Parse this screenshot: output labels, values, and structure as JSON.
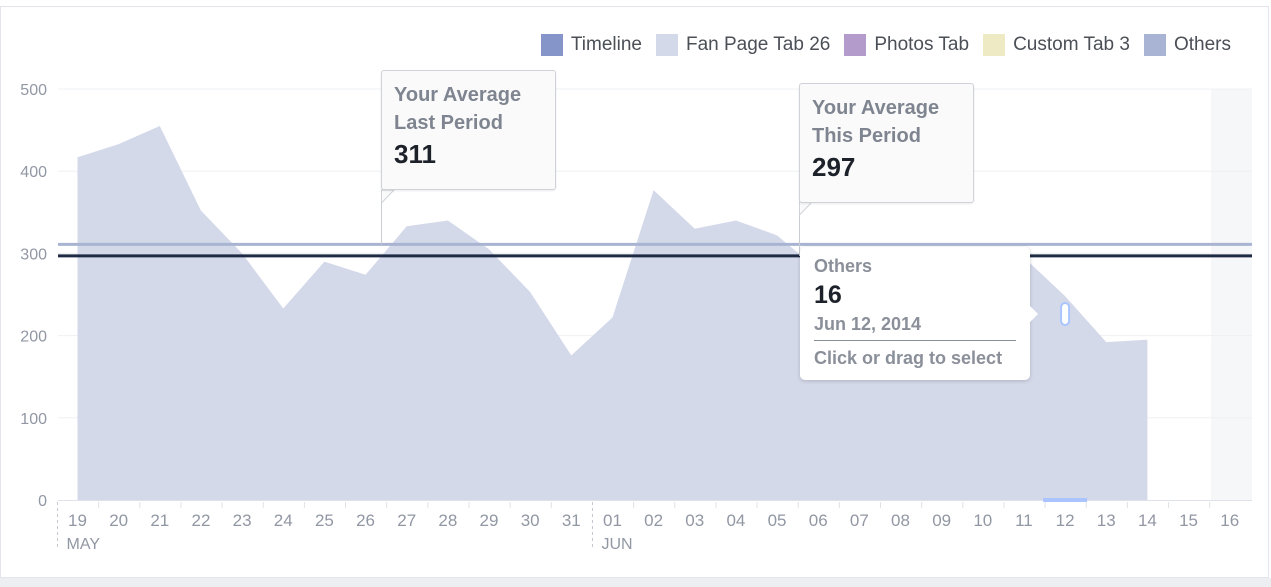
{
  "colors": {
    "area": "#d4d9ea",
    "line_last_period": "#a8b4d1",
    "line_this_period": "#1f2a44",
    "axis_text": "#9197a3",
    "grid": "#eef0f3",
    "future_band": "#f6f7f9",
    "highlight": "#a9c4ff"
  },
  "legend": [
    {
      "label": "Timeline",
      "color": "#8595c9"
    },
    {
      "label": "Fan Page Tab 26",
      "color": "#d4d9ea"
    },
    {
      "label": "Photos Tab",
      "color": "#b39ccc"
    },
    {
      "label": "Custom Tab 3",
      "color": "#eeeac3"
    },
    {
      "label": "Others",
      "color": "#a9b3d3"
    }
  ],
  "tooltip_last": {
    "line1": "Your Average",
    "line2": "Last Period",
    "value": "311"
  },
  "tooltip_this": {
    "line1": "Your Average",
    "line2": "This Period",
    "value": "297"
  },
  "hover": {
    "series": "Others",
    "value": "16",
    "date": "Jun 12, 2014",
    "hint": "Click or drag to select"
  },
  "chart_data": {
    "type": "area",
    "x": [
      "19",
      "20",
      "21",
      "22",
      "23",
      "24",
      "25",
      "26",
      "27",
      "28",
      "29",
      "30",
      "31",
      "01",
      "02",
      "03",
      "04",
      "05",
      "06",
      "07",
      "08",
      "09",
      "10",
      "11",
      "12",
      "13",
      "14",
      "15",
      "16"
    ],
    "month_labels": [
      {
        "label": "MAY",
        "at": "19"
      },
      {
        "label": "JUN",
        "at": "01"
      }
    ],
    "series": [
      {
        "name": "Fan Page Tab 26",
        "values": [
          417,
          433,
          455,
          352,
          300,
          233,
          290,
          274,
          333,
          340,
          305,
          253,
          176,
          222,
          377,
          330,
          340,
          322,
          280,
          223,
          238,
          285,
          300,
          295,
          248,
          192,
          195,
          null,
          null
        ]
      }
    ],
    "reference_lines": [
      {
        "label": "Your Average Last Period",
        "value": 311
      },
      {
        "label": "Your Average This Period",
        "value": 297
      }
    ],
    "y_ticks": [
      0,
      100,
      200,
      300,
      400,
      500
    ],
    "ylim": [
      0,
      500
    ],
    "grid": true,
    "highlighted_x": "12"
  }
}
